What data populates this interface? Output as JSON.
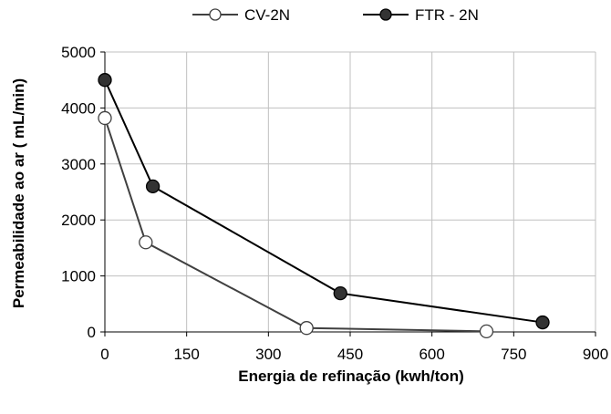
{
  "chart_data": {
    "type": "line",
    "title": "",
    "xlabel": "Energia de refinação (kwh/ton)",
    "ylabel": "Permeabilidade ao ar ( mL/min)",
    "xlim": [
      0,
      900
    ],
    "ylim": [
      0,
      5000
    ],
    "x_ticks": [
      "0",
      "150",
      "300",
      "450",
      "600",
      "750",
      "900"
    ],
    "y_ticks": [
      "0",
      "1000",
      "2000",
      "3000",
      "4000",
      "5000"
    ],
    "grid": true,
    "legend_position": "top-center",
    "series": [
      {
        "name": "CV-2N",
        "marker": "open-circle",
        "color": "#404040",
        "x": [
          0,
          75,
          370,
          700
        ],
        "y": [
          3820,
          1600,
          70,
          10
        ]
      },
      {
        "name": "FTR - 2N",
        "marker": "filled-circle",
        "color": "#000000",
        "x": [
          0,
          88,
          432,
          803
        ],
        "y": [
          4500,
          2600,
          690,
          170
        ]
      }
    ]
  }
}
